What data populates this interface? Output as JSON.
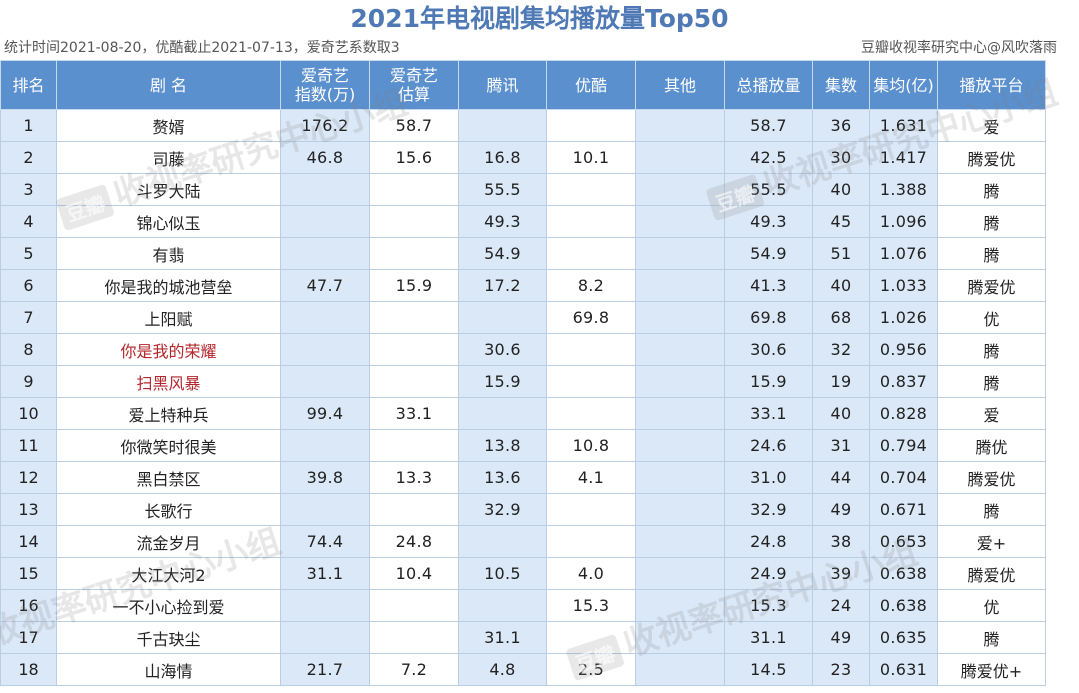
{
  "header": {
    "title": "2021年电视剧集均播放量Top50",
    "subtitle_left": "统计时间2021-08-20，优酷截止2021-07-13，爱奇艺系数取3",
    "subtitle_right": "豆瓣收视率研究中心@风吹落雨"
  },
  "watermark": {
    "badge": "豆瓣",
    "text": "收视率研究中心小组"
  },
  "chart_data": {
    "type": "table",
    "title": "2021年电视剧集均播放量Top50",
    "columns": [
      "排名",
      "剧 名",
      "爱奇艺\n指数(万)",
      "爱奇艺\n估算",
      "腾讯",
      "优酷",
      "其他",
      "总播放量",
      "集数",
      "集均(亿)",
      "播放平台"
    ],
    "rows": [
      [
        "1",
        "赘婿",
        "176.2",
        "58.7",
        "",
        "",
        "",
        "58.7",
        "36",
        "1.631",
        "爱"
      ],
      [
        "2",
        "司藤",
        "46.8",
        "15.6",
        "16.8",
        "10.1",
        "",
        "42.5",
        "30",
        "1.417",
        "腾爱优"
      ],
      [
        "3",
        "斗罗大陆",
        "",
        "",
        "55.5",
        "",
        "",
        "55.5",
        "40",
        "1.388",
        "腾"
      ],
      [
        "4",
        "锦心似玉",
        "",
        "",
        "49.3",
        "",
        "",
        "49.3",
        "45",
        "1.096",
        "腾"
      ],
      [
        "5",
        "有翡",
        "",
        "",
        "54.9",
        "",
        "",
        "54.9",
        "51",
        "1.076",
        "腾"
      ],
      [
        "6",
        "你是我的城池营垒",
        "47.7",
        "15.9",
        "17.2",
        "8.2",
        "",
        "41.3",
        "40",
        "1.033",
        "腾爱优"
      ],
      [
        "7",
        "上阳赋",
        "",
        "",
        "",
        "69.8",
        "",
        "69.8",
        "68",
        "1.026",
        "优"
      ],
      [
        "8",
        "你是我的荣耀",
        "",
        "",
        "30.6",
        "",
        "",
        "30.6",
        "32",
        "0.956",
        "腾"
      ],
      [
        "9",
        "扫黑风暴",
        "",
        "",
        "15.9",
        "",
        "",
        "15.9",
        "19",
        "0.837",
        "腾"
      ],
      [
        "10",
        "爱上特种兵",
        "99.4",
        "33.1",
        "",
        "",
        "",
        "33.1",
        "40",
        "0.828",
        "爱"
      ],
      [
        "11",
        "你微笑时很美",
        "",
        "",
        "13.8",
        "10.8",
        "",
        "24.6",
        "31",
        "0.794",
        "腾优"
      ],
      [
        "12",
        "黑白禁区",
        "39.8",
        "13.3",
        "13.6",
        "4.1",
        "",
        "31.0",
        "44",
        "0.704",
        "腾爱优"
      ],
      [
        "13",
        "长歌行",
        "",
        "",
        "32.9",
        "",
        "",
        "32.9",
        "49",
        "0.671",
        "腾"
      ],
      [
        "14",
        "流金岁月",
        "74.4",
        "24.8",
        "",
        "",
        "",
        "24.8",
        "38",
        "0.653",
        "爱+"
      ],
      [
        "15",
        "大江大河2",
        "31.1",
        "10.4",
        "10.5",
        "4.0",
        "",
        "24.9",
        "39",
        "0.638",
        "腾爱优"
      ],
      [
        "16",
        "一不小心捡到爱",
        "",
        "",
        "",
        "15.3",
        "",
        "15.3",
        "24",
        "0.638",
        "优"
      ],
      [
        "17",
        "千古玦尘",
        "",
        "",
        "31.1",
        "",
        "",
        "31.1",
        "49",
        "0.635",
        "腾"
      ],
      [
        "18",
        "山海情",
        "21.7",
        "7.2",
        "4.8",
        "2.5",
        "",
        "14.5",
        "23",
        "0.631",
        "腾爱优+"
      ]
    ],
    "highlighted_rows_red": [
      "你是我的荣耀",
      "扫黑风暴"
    ]
  },
  "colors": {
    "title": "#4f79b5",
    "header_bg": "#5b90cf",
    "blue_cell": "#dbe8f7",
    "red_text": "#b3262b"
  }
}
